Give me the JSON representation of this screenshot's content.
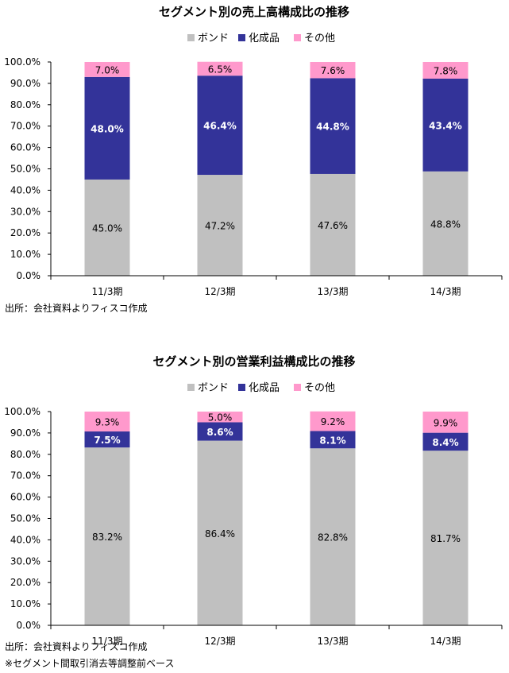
{
  "charts": [
    {
      "source": "出所：会社資料よりフィスコ作成",
      "footnote": ""
    },
    {
      "source": "出所：会社資料よりフィスコ作成",
      "footnote": "※セグメント間取引消去等調整前ベース"
    }
  ],
  "chart_data": [
    {
      "type": "bar",
      "stacked": true,
      "title": "セグメント別の売上高構成比の推移",
      "categories": [
        "11/3期",
        "12/3期",
        "13/3期",
        "14/3期"
      ],
      "ylim": [
        0,
        100
      ],
      "yticks": [
        "0.0%",
        "10.0%",
        "20.0%",
        "30.0%",
        "40.0%",
        "50.0%",
        "60.0%",
        "70.0%",
        "80.0%",
        "90.0%",
        "100.0%"
      ],
      "legend_position": "top",
      "series": [
        {
          "name": "ボンド",
          "color": "#c0c0c0",
          "values": [
            45.0,
            47.2,
            47.6,
            48.8
          ],
          "labels": [
            "45.0%",
            "47.2%",
            "47.6%",
            "48.8%"
          ]
        },
        {
          "name": "化成品",
          "color": "#333399",
          "values": [
            48.0,
            46.4,
            44.8,
            43.4
          ],
          "labels": [
            "48.0%",
            "46.4%",
            "44.8%",
            "43.4%"
          ]
        },
        {
          "name": "その他",
          "color": "#ff99cc",
          "values": [
            7.0,
            6.5,
            7.6,
            7.8
          ],
          "labels": [
            "7.0%",
            "6.5%",
            "7.6%",
            "7.8%"
          ]
        }
      ]
    },
    {
      "type": "bar",
      "stacked": true,
      "title": "セグメント別の営業利益構成比の推移",
      "categories": [
        "11/3期",
        "12/3期",
        "13/3期",
        "14/3期"
      ],
      "ylim": [
        0,
        100
      ],
      "yticks": [
        "0.0%",
        "10.0%",
        "20.0%",
        "30.0%",
        "40.0%",
        "50.0%",
        "60.0%",
        "70.0%",
        "80.0%",
        "90.0%",
        "100.0%"
      ],
      "legend_position": "top",
      "series": [
        {
          "name": "ボンド",
          "color": "#c0c0c0",
          "values": [
            83.2,
            86.4,
            82.8,
            81.7
          ],
          "labels": [
            "83.2%",
            "86.4%",
            "82.8%",
            "81.7%"
          ]
        },
        {
          "name": "化成品",
          "color": "#333399",
          "values": [
            7.5,
            8.6,
            8.1,
            8.4
          ],
          "labels": [
            "7.5%",
            "8.6%",
            "8.1%",
            "8.4%"
          ]
        },
        {
          "name": "その他",
          "color": "#ff99cc",
          "values": [
            9.3,
            5.0,
            9.2,
            9.9
          ],
          "labels": [
            "9.3%",
            "5.0%",
            "9.2%",
            "9.9%"
          ]
        }
      ]
    }
  ]
}
